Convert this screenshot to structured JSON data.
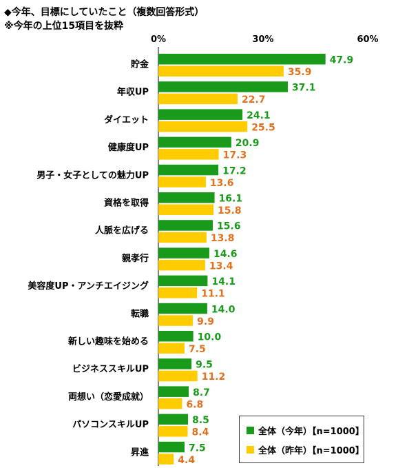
{
  "title_line1": "◆今年、目標にしていたこと（複数回答形式）",
  "title_line2": "※今年の上位15項目を抜粋",
  "colors": {
    "this_year": "#1a9a1a",
    "last_year": "#ffcc00",
    "label_this_year": "#1a9a1a",
    "label_last_year": "#e2711d"
  },
  "chart_data": {
    "type": "bar",
    "orientation": "horizontal",
    "xlim": [
      0,
      60
    ],
    "x_ticks": [
      "0%",
      "30%",
      "60%"
    ],
    "x_tick_values": [
      0,
      30,
      60
    ],
    "categories": [
      "貯金",
      "年収UP",
      "ダイエット",
      "健康度UP",
      "男子・女子としての魅力UP",
      "資格を取得",
      "人脈を広げる",
      "親孝行",
      "美容度UP・アンチエイジング",
      "転職",
      "新しい趣味を始める",
      "ビジネススキルUP",
      "両想い（恋愛成就）",
      "パソコンスキルUP",
      "昇進"
    ],
    "series": [
      {
        "name": "全体（今年）【n=1000】",
        "values": [
          47.9,
          37.1,
          24.1,
          20.9,
          17.2,
          16.1,
          15.6,
          14.6,
          14.1,
          14.0,
          10.0,
          9.5,
          8.7,
          8.5,
          7.5
        ]
      },
      {
        "name": "全体（昨年）【n=1000】",
        "values": [
          35.9,
          22.7,
          25.5,
          17.3,
          13.6,
          15.8,
          13.8,
          13.4,
          11.1,
          9.9,
          7.5,
          11.2,
          6.8,
          8.4,
          4.4
        ]
      }
    ],
    "legend_position": "bottom-right",
    "grid": false
  },
  "legend": {
    "this_year": "全体（今年）【n=1000】",
    "last_year": "全体（昨年）【n=1000】"
  }
}
